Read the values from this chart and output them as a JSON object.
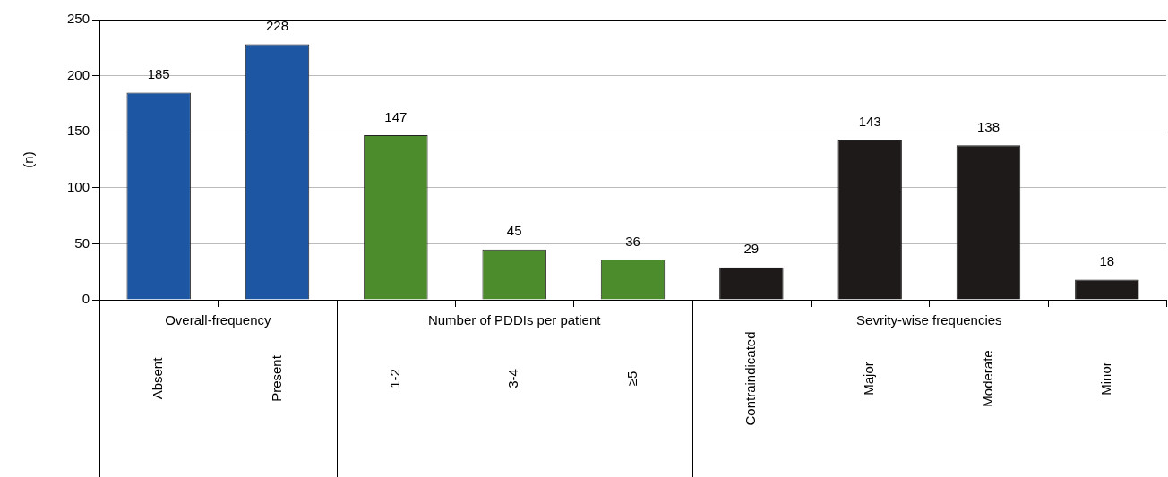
{
  "chart_data": {
    "type": "bar",
    "ylabel": "(n)",
    "categories": [
      "Absent",
      "Present",
      "1-2",
      "3-4",
      "≥5",
      "Contraindicated",
      "Major",
      "Moderate",
      "Minor"
    ],
    "values": [
      185,
      228,
      147,
      45,
      36,
      29,
      143,
      138,
      18
    ],
    "colors": [
      "#1d56a3",
      "#1d56a3",
      "#4d8c2c",
      "#4d8c2c",
      "#4d8c2c",
      "#1e1a1a",
      "#1e1a1a",
      "#1e1a1a",
      "#1e1a1a"
    ],
    "ylim": [
      0,
      250
    ],
    "yticks": [
      0,
      50,
      100,
      150,
      200,
      250
    ],
    "grid": "y",
    "data_labels": true,
    "annotations": [
      "Overall-frequency",
      "Number of PDDIs per patient",
      "Sevrity-wise frequencies"
    ]
  }
}
